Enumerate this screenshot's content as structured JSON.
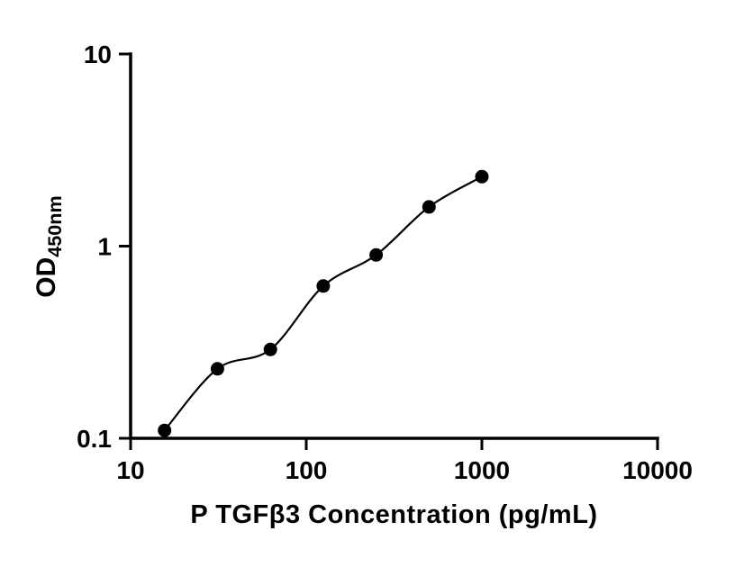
{
  "chart_data": {
    "type": "scatter",
    "title": "",
    "xlabel": "P TGFβ3 Concentration (pg/mL)",
    "ylabel": "OD",
    "ylabel_subscript": "450nm",
    "x_scale": "log",
    "y_scale": "log",
    "xlim": [
      10,
      10000
    ],
    "ylim": [
      0.1,
      10
    ],
    "x_ticks": [
      10,
      100,
      1000,
      10000
    ],
    "x_tick_labels": [
      "10",
      "100",
      "1000",
      "10000"
    ],
    "y_ticks": [
      0.1,
      1,
      10
    ],
    "y_tick_labels": [
      "0.1",
      "1",
      "10"
    ],
    "x": [
      15.6,
      31.2,
      62.5,
      125,
      250,
      500,
      1000
    ],
    "y": [
      0.11,
      0.23,
      0.29,
      0.62,
      0.9,
      1.6,
      2.3
    ],
    "grid": false,
    "legend": "none",
    "marker_style": "filled-circle",
    "marker_color": "#000000",
    "line_color": "#000000",
    "axis_color": "#000000",
    "background": "#ffffff"
  }
}
